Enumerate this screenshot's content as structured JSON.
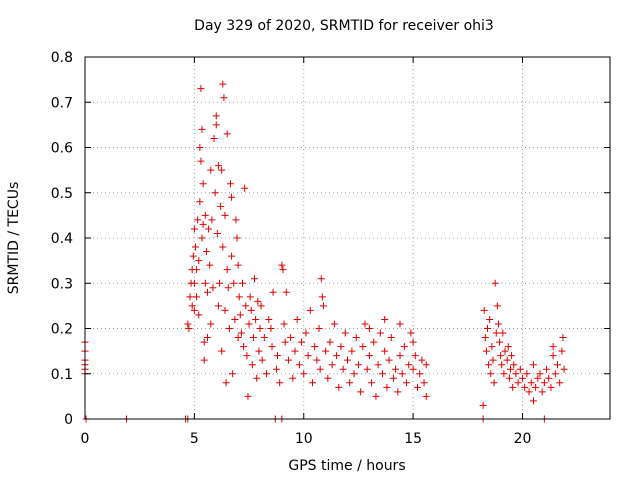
{
  "chart_data": {
    "type": "scatter",
    "title": "Day 329 of 2020, SRMTID for receiver ohi3",
    "xlabel": "GPS time / hours",
    "ylabel": "SRMTID / TECUs",
    "xlim": [
      0,
      24
    ],
    "ylim": [
      0,
      0.8
    ],
    "xticks": [
      0,
      5,
      10,
      15,
      20
    ],
    "xtick_labels": [
      "0",
      "5",
      "10",
      "15",
      "20"
    ],
    "yticks": [
      0,
      0.1,
      0.2,
      0.3,
      0.4,
      0.5,
      0.6,
      0.7,
      0.8
    ],
    "ytick_labels": [
      "0",
      "0.1",
      "0.2",
      "0.3",
      "0.4",
      "0.5",
      "0.6",
      "0.7",
      "0.8"
    ],
    "grid": true,
    "marker": "+",
    "color": "#e00000",
    "series": [
      {
        "name": "SRMTID",
        "points": [
          [
            0.0,
            0.17
          ],
          [
            0.0,
            0.15
          ],
          [
            0.0,
            0.13
          ],
          [
            0.0,
            0.12
          ],
          [
            0.0,
            0.11
          ],
          [
            0.0,
            0.1
          ],
          [
            0.05,
            0.0
          ],
          [
            1.9,
            0.0
          ],
          [
            4.6,
            0.0
          ],
          [
            4.7,
            0.0
          ],
          [
            4.7,
            0.21
          ],
          [
            4.75,
            0.2
          ],
          [
            4.8,
            0.27
          ],
          [
            4.85,
            0.3
          ],
          [
            4.9,
            0.25
          ],
          [
            4.9,
            0.33
          ],
          [
            4.95,
            0.36
          ],
          [
            5.0,
            0.42
          ],
          [
            5.0,
            0.3
          ],
          [
            5.0,
            0.24
          ],
          [
            5.05,
            0.38
          ],
          [
            5.1,
            0.33
          ],
          [
            5.1,
            0.27
          ],
          [
            5.15,
            0.44
          ],
          [
            5.2,
            0.23
          ],
          [
            5.2,
            0.35
          ],
          [
            5.25,
            0.48
          ],
          [
            5.25,
            0.6
          ],
          [
            5.3,
            0.73
          ],
          [
            5.3,
            0.57
          ],
          [
            5.35,
            0.64
          ],
          [
            5.35,
            0.4
          ],
          [
            5.4,
            0.43
          ],
          [
            5.4,
            0.52
          ],
          [
            5.45,
            0.17
          ],
          [
            5.45,
            0.13
          ],
          [
            5.5,
            0.3
          ],
          [
            5.5,
            0.45
          ],
          [
            5.55,
            0.37
          ],
          [
            5.6,
            0.28
          ],
          [
            5.6,
            0.18
          ],
          [
            5.65,
            0.42
          ],
          [
            5.7,
            0.34
          ],
          [
            5.75,
            0.55
          ],
          [
            5.75,
            0.21
          ],
          [
            5.8,
            0.44
          ],
          [
            5.85,
            0.29
          ],
          [
            5.9,
            0.62
          ],
          [
            5.95,
            0.5
          ],
          [
            6.0,
            0.65
          ],
          [
            6.0,
            0.67
          ],
          [
            6.05,
            0.41
          ],
          [
            6.1,
            0.56
          ],
          [
            6.1,
            0.25
          ],
          [
            6.15,
            0.3
          ],
          [
            6.2,
            0.47
          ],
          [
            6.25,
            0.55
          ],
          [
            6.25,
            0.15
          ],
          [
            6.3,
            0.38
          ],
          [
            6.3,
            0.74
          ],
          [
            6.35,
            0.71
          ],
          [
            6.4,
            0.45
          ],
          [
            6.4,
            0.24
          ],
          [
            6.45,
            0.08
          ],
          [
            6.5,
            0.63
          ],
          [
            6.5,
            0.33
          ],
          [
            6.55,
            0.29
          ],
          [
            6.6,
            0.2
          ],
          [
            6.65,
            0.52
          ],
          [
            6.7,
            0.49
          ],
          [
            6.7,
            0.36
          ],
          [
            6.75,
            0.1
          ],
          [
            6.8,
            0.3
          ],
          [
            6.85,
            0.22
          ],
          [
            6.9,
            0.44
          ],
          [
            6.95,
            0.4
          ],
          [
            7.0,
            0.34
          ],
          [
            7.0,
            0.18
          ],
          [
            7.05,
            0.27
          ],
          [
            7.1,
            0.23
          ],
          [
            7.15,
            0.19
          ],
          [
            7.2,
            0.3
          ],
          [
            7.25,
            0.16
          ],
          [
            7.3,
            0.51
          ],
          [
            7.35,
            0.25
          ],
          [
            7.4,
            0.14
          ],
          [
            7.45,
            0.05
          ],
          [
            7.5,
            0.21
          ],
          [
            7.55,
            0.27
          ],
          [
            7.6,
            0.24
          ],
          [
            7.65,
            0.12
          ],
          [
            7.7,
            0.18
          ],
          [
            7.75,
            0.31
          ],
          [
            7.8,
            0.22
          ],
          [
            7.85,
            0.09
          ],
          [
            7.9,
            0.26
          ],
          [
            7.95,
            0.15
          ],
          [
            8.0,
            0.2
          ],
          [
            8.05,
            0.25
          ],
          [
            8.1,
            0.13
          ],
          [
            8.2,
            0.18
          ],
          [
            8.3,
            0.1
          ],
          [
            8.4,
            0.22
          ],
          [
            8.5,
            0.2
          ],
          [
            8.55,
            0.16
          ],
          [
            8.6,
            0.28
          ],
          [
            8.7,
            0.0
          ],
          [
            8.75,
            0.11
          ],
          [
            8.8,
            0.14
          ],
          [
            8.9,
            0.08
          ],
          [
            9.0,
            0.0
          ],
          [
            9.0,
            0.34
          ],
          [
            9.05,
            0.33
          ],
          [
            9.1,
            0.21
          ],
          [
            9.15,
            0.17
          ],
          [
            9.2,
            0.28
          ],
          [
            9.3,
            0.13
          ],
          [
            9.4,
            0.18
          ],
          [
            9.5,
            0.09
          ],
          [
            9.6,
            0.15
          ],
          [
            9.7,
            0.22
          ],
          [
            9.8,
            0.12
          ],
          [
            9.9,
            0.17
          ],
          [
            10.0,
            0.1
          ],
          [
            10.1,
            0.19
          ],
          [
            10.2,
            0.14
          ],
          [
            10.3,
            0.24
          ],
          [
            10.4,
            0.08
          ],
          [
            10.5,
            0.16
          ],
          [
            10.6,
            0.13
          ],
          [
            10.7,
            0.2
          ],
          [
            10.75,
            0.11
          ],
          [
            10.8,
            0.31
          ],
          [
            10.85,
            0.27
          ],
          [
            10.9,
            0.25
          ],
          [
            11.0,
            0.15
          ],
          [
            11.1,
            0.09
          ],
          [
            11.2,
            0.17
          ],
          [
            11.3,
            0.12
          ],
          [
            11.4,
            0.21
          ],
          [
            11.5,
            0.14
          ],
          [
            11.6,
            0.07
          ],
          [
            11.7,
            0.16
          ],
          [
            11.8,
            0.11
          ],
          [
            11.9,
            0.19
          ],
          [
            12.0,
            0.13
          ],
          [
            12.1,
            0.08
          ],
          [
            12.2,
            0.15
          ],
          [
            12.3,
            0.1
          ],
          [
            12.4,
            0.18
          ],
          [
            12.5,
            0.12
          ],
          [
            12.6,
            0.06
          ],
          [
            12.7,
            0.16
          ],
          [
            12.8,
            0.21
          ],
          [
            12.9,
            0.11
          ],
          [
            13.0,
            0.14
          ],
          [
            13.1,
            0.08
          ],
          [
            13.2,
            0.17
          ],
          [
            13.3,
            0.05
          ],
          [
            13.4,
            0.12
          ],
          [
            13.5,
            0.19
          ],
          [
            13.6,
            0.1
          ],
          [
            13.7,
            0.15
          ],
          [
            13.8,
            0.07
          ],
          [
            13.9,
            0.13
          ],
          [
            14.0,
            0.18
          ],
          [
            14.1,
            0.09
          ],
          [
            14.2,
            0.11
          ],
          [
            14.3,
            0.06
          ],
          [
            14.4,
            0.14
          ],
          [
            14.5,
            0.1
          ],
          [
            14.6,
            0.16
          ],
          [
            14.7,
            0.08
          ],
          [
            14.8,
            0.12
          ],
          [
            14.9,
            0.19
          ],
          [
            15.0,
            0.11
          ],
          [
            15.1,
            0.14
          ],
          [
            15.2,
            0.07
          ],
          [
            15.3,
            0.1
          ],
          [
            15.4,
            0.13
          ],
          [
            15.5,
            0.08
          ],
          [
            15.6,
            0.12
          ],
          [
            15.6,
            0.05
          ],
          [
            13.0,
            0.2
          ],
          [
            13.7,
            0.22
          ],
          [
            14.4,
            0.21
          ],
          [
            15.0,
            0.17
          ],
          [
            18.2,
            0.03
          ],
          [
            18.2,
            0.0
          ],
          [
            18.25,
            0.24
          ],
          [
            18.3,
            0.18
          ],
          [
            18.35,
            0.15
          ],
          [
            18.4,
            0.2
          ],
          [
            18.45,
            0.12
          ],
          [
            18.5,
            0.22
          ],
          [
            18.55,
            0.1
          ],
          [
            18.6,
            0.16
          ],
          [
            18.65,
            0.13
          ],
          [
            18.7,
            0.08
          ],
          [
            18.75,
            0.3
          ],
          [
            18.8,
            0.19
          ],
          [
            18.85,
            0.25
          ],
          [
            18.9,
            0.21
          ],
          [
            18.95,
            0.17
          ],
          [
            19.0,
            0.14
          ],
          [
            19.05,
            0.12
          ],
          [
            19.1,
            0.19
          ],
          [
            19.15,
            0.1
          ],
          [
            19.2,
            0.15
          ],
          [
            19.3,
            0.13
          ],
          [
            19.35,
            0.16
          ],
          [
            19.4,
            0.09
          ],
          [
            19.45,
            0.11
          ],
          [
            19.5,
            0.14
          ],
          [
            19.55,
            0.07
          ],
          [
            19.6,
            0.12
          ],
          [
            19.7,
            0.1
          ],
          [
            19.8,
            0.08
          ],
          [
            19.9,
            0.11
          ],
          [
            20.0,
            0.09
          ],
          [
            20.1,
            0.07
          ],
          [
            20.2,
            0.1
          ],
          [
            20.3,
            0.06
          ],
          [
            20.4,
            0.08
          ],
          [
            20.5,
            0.12
          ],
          [
            20.6,
            0.07
          ],
          [
            20.7,
            0.09
          ],
          [
            20.8,
            0.1
          ],
          [
            20.9,
            0.06
          ],
          [
            21.0,
            0.0
          ],
          [
            21.0,
            0.08
          ],
          [
            21.1,
            0.11
          ],
          [
            21.2,
            0.09
          ],
          [
            21.3,
            0.07
          ],
          [
            21.4,
            0.14
          ],
          [
            21.5,
            0.1
          ],
          [
            21.6,
            0.12
          ],
          [
            21.7,
            0.08
          ],
          [
            21.8,
            0.15
          ],
          [
            21.85,
            0.18
          ],
          [
            21.9,
            0.11
          ],
          [
            20.5,
            0.04
          ],
          [
            21.4,
            0.16
          ]
        ]
      }
    ]
  }
}
